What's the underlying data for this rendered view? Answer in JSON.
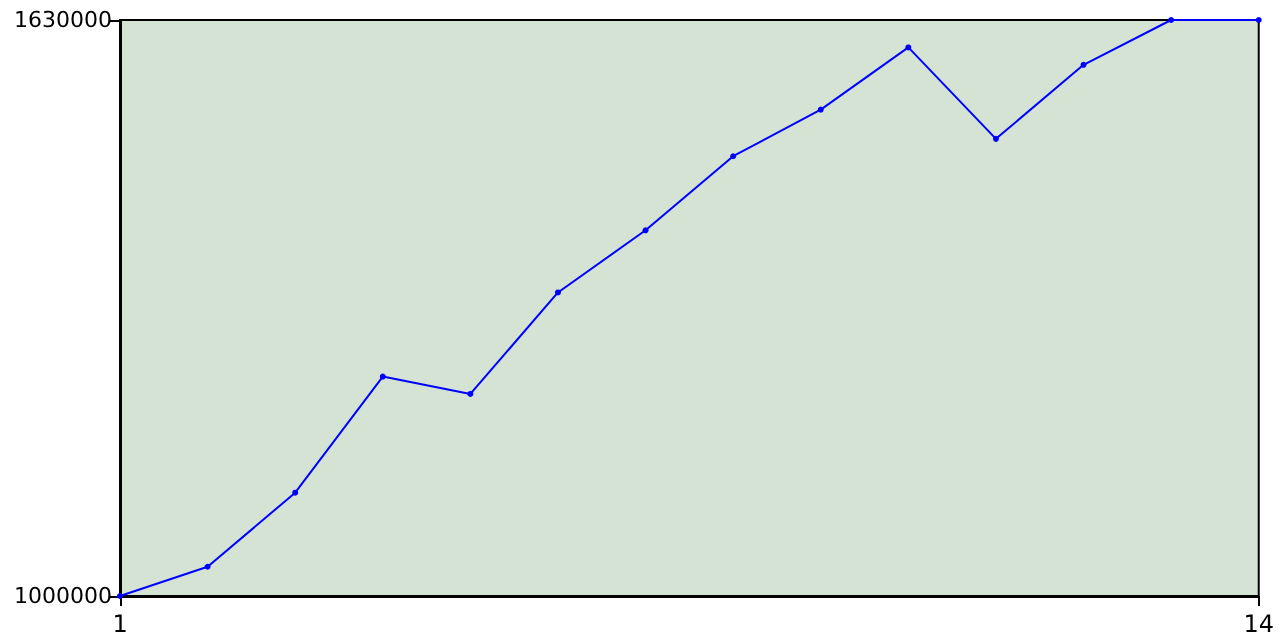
{
  "chart_data": {
    "type": "line",
    "x": [
      1,
      2,
      3,
      4,
      5,
      6,
      7,
      8,
      9,
      10,
      11,
      12,
      13,
      14
    ],
    "series": [
      {
        "color": "#0000ff",
        "values": [
          1000000,
          1032000,
          1113000,
          1240000,
          1221000,
          1332000,
          1400000,
          1481000,
          1532000,
          1600000,
          1500000,
          1581000,
          1630000,
          1630000
        ]
      }
    ],
    "xlim": [
      1,
      14
    ],
    "xticks": [
      1,
      14
    ],
    "ylim": [
      1000000,
      1630000
    ],
    "yticks": [
      1000000,
      1630000
    ],
    "grid": false,
    "marker": "circle",
    "line_style": "solid"
  }
}
